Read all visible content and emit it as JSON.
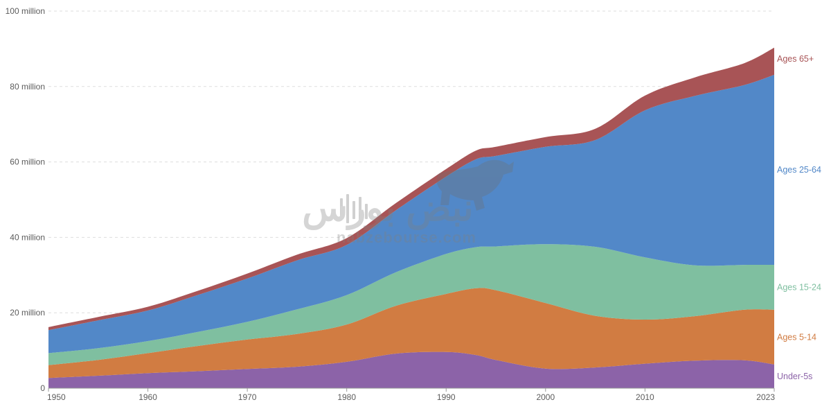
{
  "watermark": {
    "text": "نبض بورس",
    "url": "nabzebourse.com"
  },
  "chart_data": {
    "type": "area",
    "stacked": true,
    "x": [
      1950,
      1955,
      1960,
      1965,
      1970,
      1975,
      1980,
      1985,
      1990,
      1993,
      1995,
      2000,
      2005,
      2010,
      2015,
      2020,
      2023
    ],
    "xlim": [
      1950,
      2023
    ],
    "ylim": [
      0,
      100000000
    ],
    "x_ticks": [
      {
        "value": 1950,
        "label": "1950"
      },
      {
        "value": 1960,
        "label": "1960"
      },
      {
        "value": 1970,
        "label": "1970"
      },
      {
        "value": 1980,
        "label": "1980"
      },
      {
        "value": 1990,
        "label": "1990"
      },
      {
        "value": 2000,
        "label": "2000"
      },
      {
        "value": 2010,
        "label": "2010"
      },
      {
        "value": 2023,
        "label": "2023"
      }
    ],
    "y_ticks": [
      {
        "value": 0,
        "label": "0"
      },
      {
        "value": 20000000,
        "label": "20 million"
      },
      {
        "value": 40000000,
        "label": "40 million"
      },
      {
        "value": 60000000,
        "label": "60 million"
      },
      {
        "value": 80000000,
        "label": "80 million"
      },
      {
        "value": 100000000,
        "label": "100 million"
      }
    ],
    "grid": true,
    "legend": "inline-right",
    "series": [
      {
        "name": "Under-5s",
        "color": "#8c63a8",
        "values": [
          2700000,
          3300000,
          4000000,
          4500000,
          5100000,
          5700000,
          7000000,
          9200000,
          9600000,
          8800000,
          7500000,
          5200000,
          5500000,
          6500000,
          7300000,
          7400000,
          6300000
        ]
      },
      {
        "name": "Ages 5-14",
        "color": "#d17c42",
        "values": [
          3400000,
          4200000,
          5300000,
          6700000,
          7800000,
          8700000,
          9900000,
          12700000,
          15400000,
          17700000,
          18500000,
          17400000,
          13700000,
          11700000,
          11800000,
          13400000,
          14500000
        ]
      },
      {
        "name": "Ages 15-24",
        "color": "#7fbfa0",
        "values": [
          3200000,
          3100000,
          3200000,
          3700000,
          4700000,
          6500000,
          7800000,
          8900000,
          10600000,
          10900000,
          11600000,
          15600000,
          18300000,
          16500000,
          13500000,
          11900000,
          11900000
        ]
      },
      {
        "name": "Ages 25-64",
        "color": "#5288c8",
        "values": [
          6100000,
          7400000,
          8100000,
          9800000,
          11500000,
          13000000,
          13300000,
          16500000,
          20500000,
          23300000,
          24000000,
          25800000,
          28300000,
          39000000,
          44900000,
          47700000,
          50400000
        ]
      },
      {
        "name": "Ages 65+",
        "color": "#a85456",
        "values": [
          800000,
          900000,
          1000000,
          1100000,
          1300000,
          1500000,
          1800000,
          1900000,
          2000000,
          2300000,
          2400000,
          2600000,
          3000000,
          3900000,
          4900000,
          5800000,
          7200000
        ]
      }
    ]
  }
}
